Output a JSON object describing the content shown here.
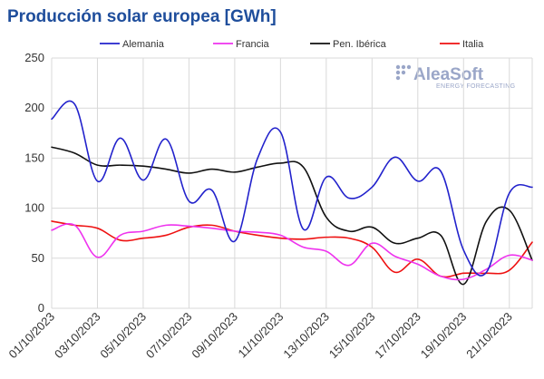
{
  "chart_data": {
    "type": "line",
    "title": "Producción solar europea [GWh]",
    "xlabel": "",
    "ylabel": "",
    "ylim": [
      0,
      250
    ],
    "yticks": [
      0,
      50,
      100,
      150,
      200,
      250
    ],
    "grid": true,
    "legend_position": "top",
    "x": [
      "01/10/2023",
      "02/10/2023",
      "03/10/2023",
      "04/10/2023",
      "05/10/2023",
      "06/10/2023",
      "07/10/2023",
      "08/10/2023",
      "09/10/2023",
      "10/10/2023",
      "11/10/2023",
      "12/10/2023",
      "13/10/2023",
      "14/10/2023",
      "15/10/2023",
      "16/10/2023",
      "17/10/2023",
      "18/10/2023",
      "19/10/2023",
      "20/10/2023",
      "21/10/2023",
      "22/10/2023"
    ],
    "xtick_labels": [
      "01/10/2023",
      "03/10/2023",
      "05/10/2023",
      "07/10/2023",
      "09/10/2023",
      "11/10/2023",
      "13/10/2023",
      "15/10/2023",
      "17/10/2023",
      "19/10/2023",
      "21/10/2023"
    ],
    "series": [
      {
        "name": "Alemania",
        "color": "#2222cc",
        "values": [
          189,
          204,
          127,
          170,
          128,
          169,
          107,
          118,
          67,
          150,
          176,
          79,
          131,
          110,
          121,
          151,
          127,
          137,
          58,
          36,
          115,
          121
        ]
      },
      {
        "name": "Francia",
        "color": "#ee33ee",
        "values": [
          78,
          83,
          51,
          73,
          77,
          83,
          82,
          80,
          77,
          76,
          73,
          61,
          57,
          43,
          65,
          52,
          44,
          32,
          29,
          39,
          53,
          48
        ]
      },
      {
        "name": "Pen. Ibérica",
        "color": "#111111",
        "values": [
          161,
          155,
          143,
          143,
          142,
          139,
          135,
          139,
          136,
          141,
          145,
          141,
          91,
          77,
          81,
          65,
          70,
          73,
          24,
          87,
          98,
          48
        ]
      },
      {
        "name": "Italia",
        "color": "#ee1111",
        "values": [
          87,
          83,
          80,
          68,
          70,
          73,
          81,
          83,
          77,
          73,
          70,
          69,
          71,
          70,
          61,
          36,
          49,
          32,
          35,
          35,
          38,
          66
        ]
      }
    ]
  },
  "logo": {
    "main": "AleaSoft",
    "sub": "ENERGY FORECASTING"
  }
}
